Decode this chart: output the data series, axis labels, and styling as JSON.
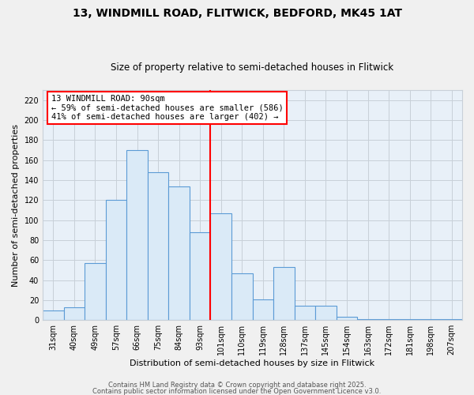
{
  "title": "13, WINDMILL ROAD, FLITWICK, BEDFORD, MK45 1AT",
  "subtitle": "Size of property relative to semi-detached houses in Flitwick",
  "xlabel": "Distribution of semi-detached houses by size in Flitwick",
  "ylabel": "Number of semi-detached properties",
  "categories": [
    "31sqm",
    "40sqm",
    "49sqm",
    "57sqm",
    "66sqm",
    "75sqm",
    "84sqm",
    "93sqm",
    "101sqm",
    "110sqm",
    "119sqm",
    "128sqm",
    "137sqm",
    "145sqm",
    "154sqm",
    "163sqm",
    "172sqm",
    "181sqm",
    "198sqm",
    "207sqm"
  ],
  "values": [
    10,
    13,
    57,
    120,
    170,
    148,
    134,
    88,
    107,
    47,
    21,
    53,
    14,
    14,
    3,
    1,
    1,
    1,
    1,
    1
  ],
  "bar_color": "#daeaf7",
  "bar_edge_color": "#5b9bd5",
  "vline_x_index": 7,
  "vline_color": "red",
  "annotation_title": "13 WINDMILL ROAD: 90sqm",
  "annotation_line1": "← 59% of semi-detached houses are smaller (586)",
  "annotation_line2": "41% of semi-detached houses are larger (402) →",
  "annotation_box_edgecolor": "red",
  "ylim": [
    0,
    230
  ],
  "yticks": [
    0,
    20,
    40,
    60,
    80,
    100,
    120,
    140,
    160,
    180,
    200,
    220
  ],
  "footer1": "Contains HM Land Registry data © Crown copyright and database right 2025.",
  "footer2": "Contains public sector information licensed under the Open Government Licence v3.0.",
  "bg_color": "#f0f0f0",
  "plot_bg_color": "#e8f0f8",
  "grid_color": "#c8d0d8",
  "title_fontsize": 10,
  "subtitle_fontsize": 8.5,
  "ylabel_fontsize": 8,
  "xlabel_fontsize": 8,
  "tick_fontsize": 7,
  "footer_fontsize": 6
}
